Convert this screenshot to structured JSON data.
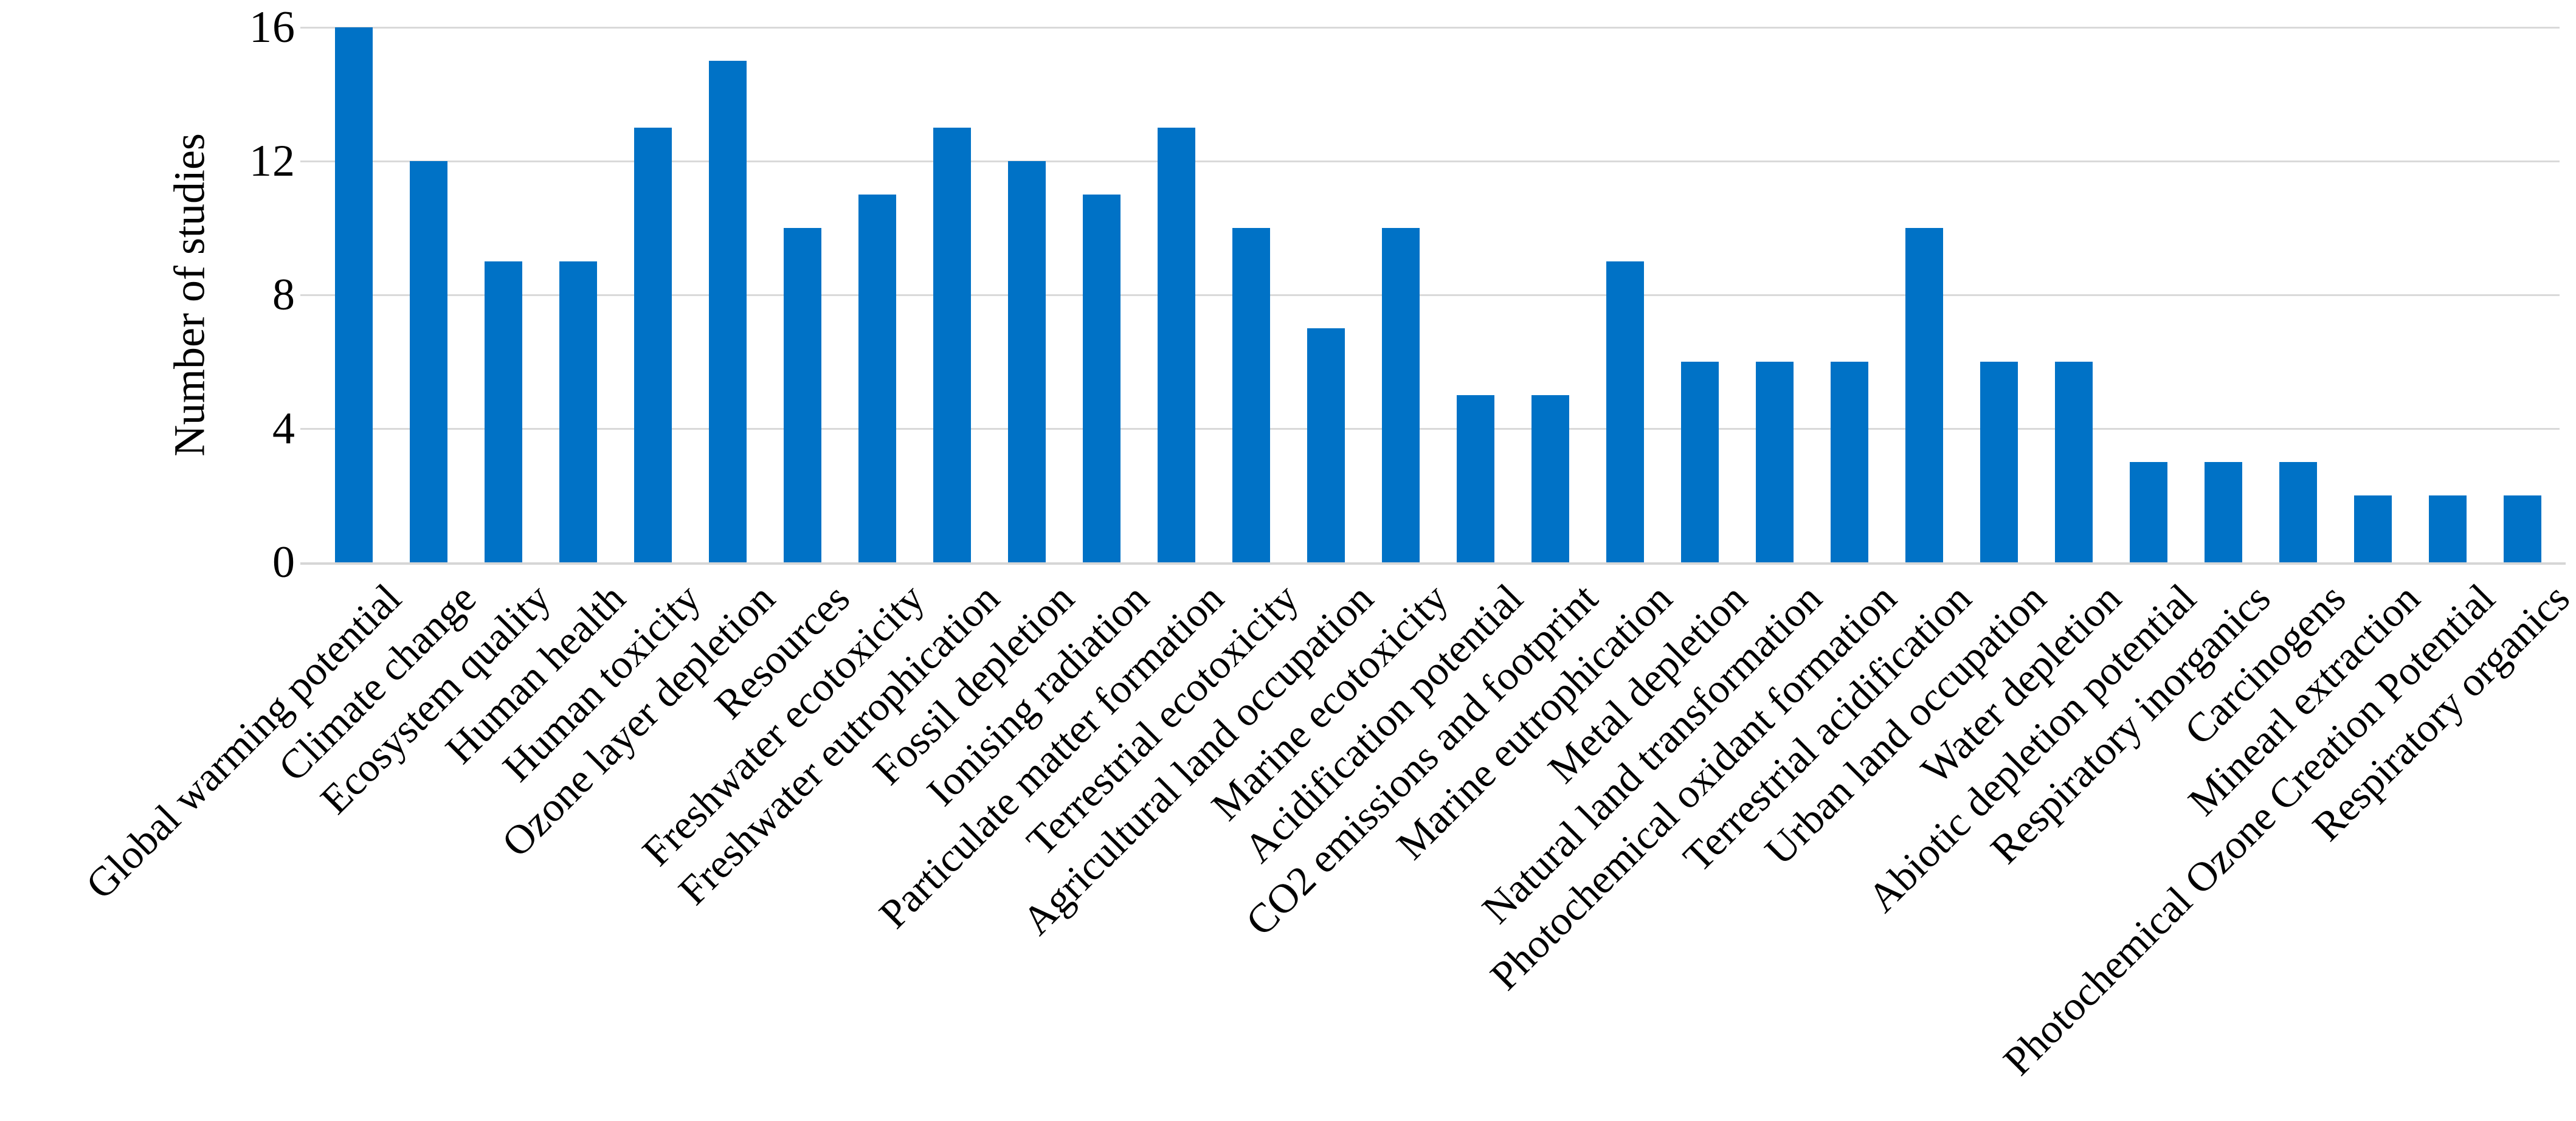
{
  "figure": {
    "background": "#FFFFFF"
  },
  "chart_data": {
    "type": "bar",
    "title": "",
    "xlabel": "",
    "ylabel": "Number of studies",
    "ylim": [
      0,
      16
    ],
    "yticks": [
      0,
      4,
      8,
      12,
      16
    ],
    "grid": true,
    "legend_position": "none",
    "bar_color": "#0072C6",
    "gridline_color": "#D9D9D9",
    "baseline_color": "#D6D6D6",
    "text_color": "#000000",
    "categories": [
      "Global warming potential",
      "Climate change",
      "Ecosystem quality",
      "Human health",
      "Human toxicity",
      "Ozone layer depletion",
      "Resources",
      "Freshwater ecotoxicity",
      "Freshwater eutrophication",
      "Fossil depletion",
      "Ionising radiation",
      "Particulate matter formation",
      "Terrestrial ecotoxicity",
      "Agricultural land occupation",
      "Marine ecotoxicity",
      "Acidification potential",
      "CO2 emissions and footprint",
      "Marine eutrophication",
      "Metal depletion",
      "Natural land transformation",
      "Photochemical oxidant formation",
      "Terrestrial acidification",
      "Urban land occupation",
      "Water depletion",
      "Abiotic depletion potential",
      "Respiratory inorganics",
      "Carcinogens",
      "Minearl extraction",
      "Photochemical Ozone Creation Potential",
      "Respiratory organics"
    ],
    "values": [
      16,
      12,
      9,
      9,
      13,
      15,
      10,
      11,
      13,
      12,
      11,
      13,
      10,
      7,
      10,
      5,
      5,
      9,
      6,
      6,
      6,
      10,
      6,
      6,
      3,
      3,
      3,
      2,
      2,
      2
    ]
  }
}
